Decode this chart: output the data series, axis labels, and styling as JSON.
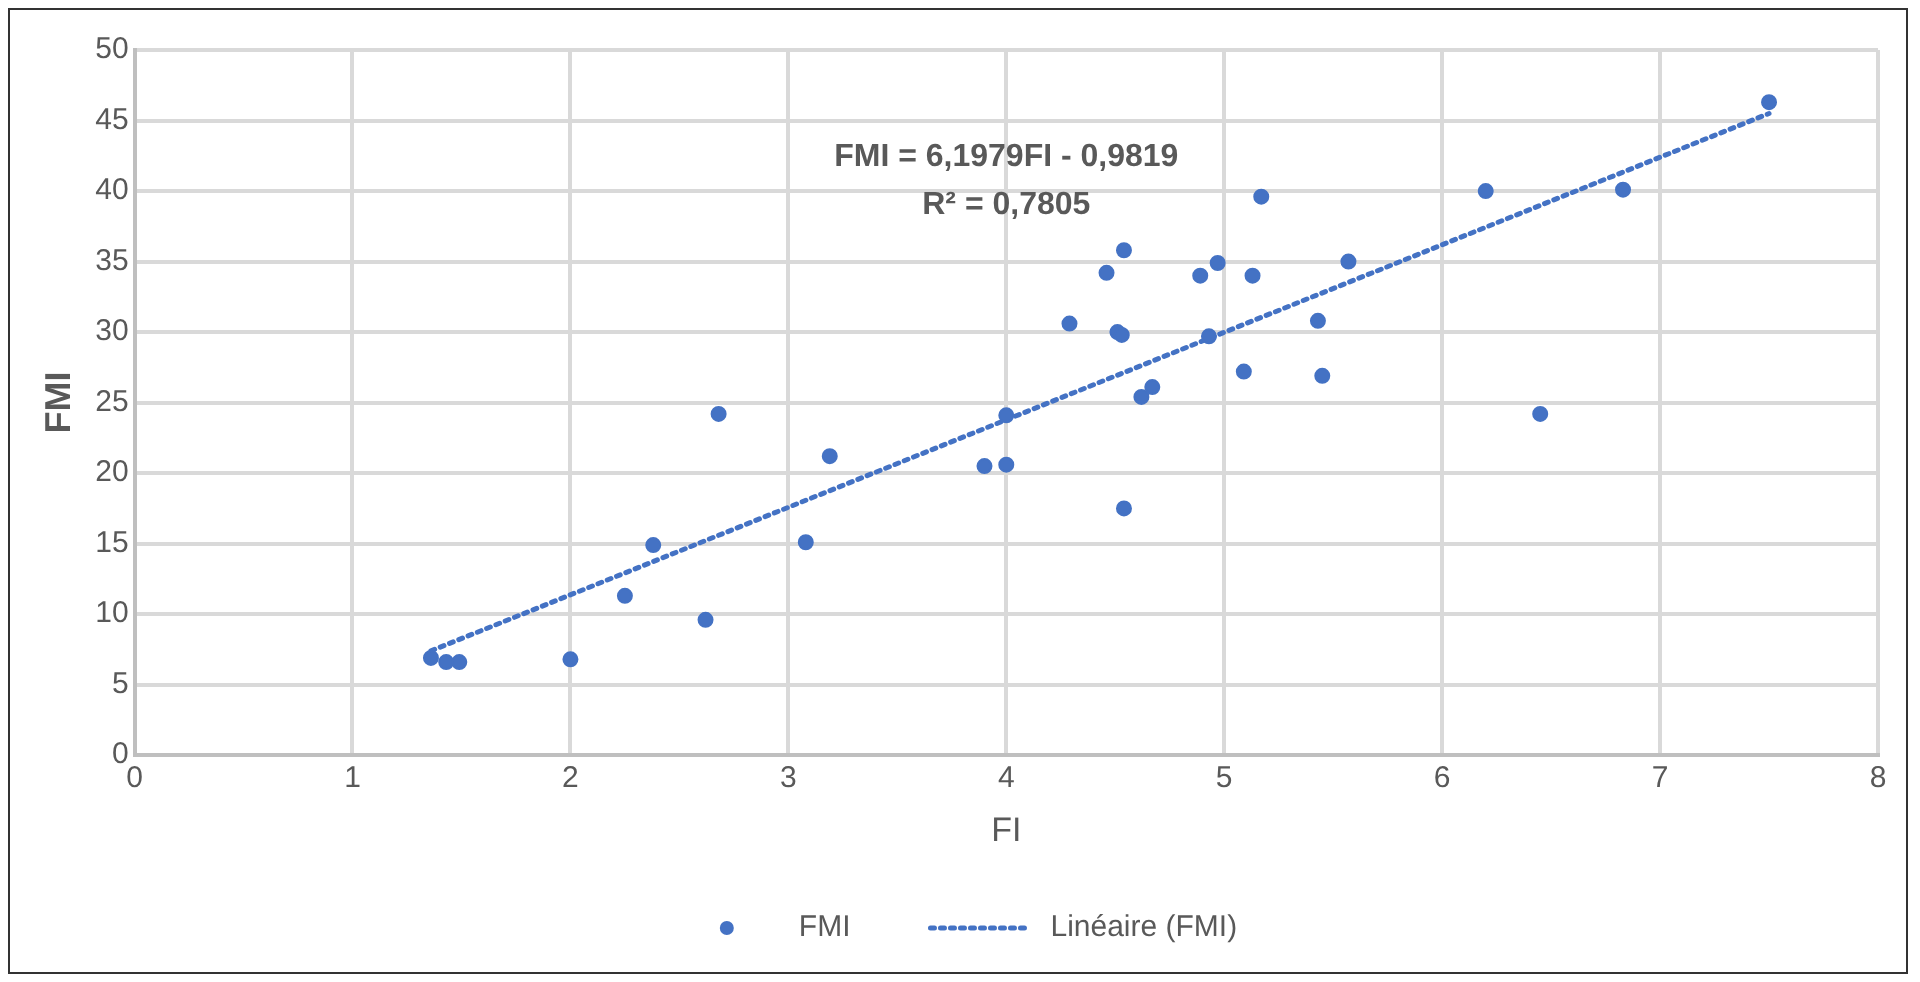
{
  "chart_data": {
    "type": "scatter",
    "xlabel": "FI",
    "ylabel": "FMI",
    "xlim": [
      0,
      8
    ],
    "xticks": [
      0,
      1,
      2,
      3,
      4,
      5,
      6,
      7,
      8
    ],
    "ylim": [
      0,
      50
    ],
    "yticks": [
      0,
      5,
      10,
      15,
      20,
      25,
      30,
      35,
      40,
      45,
      50
    ],
    "grid": true,
    "legend": "bottom",
    "marker": "circle",
    "annotations": [
      "FMI = 6,1979FI - 0,9819",
      "R² = 0,7805"
    ],
    "series": [
      {
        "name": "FMI",
        "type": "scatter",
        "color": "#4472c4",
        "x": [
          1.36,
          1.43,
          1.49,
          2.0,
          2.25,
          2.38,
          2.62,
          2.68,
          3.08,
          3.19,
          3.9,
          4.0,
          4.0,
          4.29,
          4.46,
          4.51,
          4.53,
          4.54,
          4.54,
          4.62,
          4.67,
          4.89,
          4.93,
          4.97,
          5.09,
          5.13,
          5.17,
          5.43,
          5.45,
          5.57,
          6.2,
          6.45,
          6.83,
          7.5
        ],
        "values": [
          6.9,
          6.6,
          6.6,
          6.8,
          11.3,
          14.9,
          9.6,
          24.2,
          15.1,
          21.2,
          20.5,
          20.6,
          24.1,
          30.6,
          34.2,
          30.0,
          29.8,
          35.8,
          17.5,
          25.4,
          26.1,
          34.0,
          29.7,
          34.9,
          27.2,
          34.0,
          39.6,
          30.8,
          26.9,
          35.0,
          40.0,
          24.2,
          40.1,
          46.3
        ]
      },
      {
        "name": "Linéaire (FMI)",
        "type": "line",
        "color": "#4472c4",
        "line_style": "dotted",
        "marker": "none",
        "x": [
          1.36,
          7.5
        ],
        "values": [
          7.4,
          45.5
        ]
      }
    ]
  }
}
